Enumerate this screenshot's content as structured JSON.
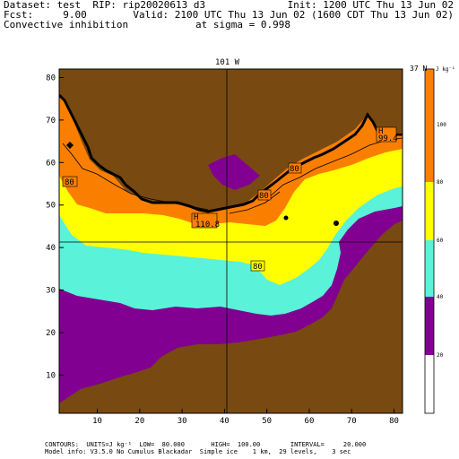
{
  "header": {
    "line1_left": "Dataset: test  RIP: rip20020613 d3",
    "line1_right": "Init: 1200 UTC Thu 13 Jun 02",
    "line2_left": "Fcst:     9.00",
    "line2_right": "Valid: 2100 UTC Thu 13 Jun 02 (1600 CDT Thu 13 Jun 02)",
    "line3_left": "Convective inhibition",
    "line3_right": "at sigma = 0.998"
  },
  "map": {
    "lon_label": "101 W",
    "lat_label": "37 N",
    "units_label": "J kg⁻¹",
    "x_ticks": [
      "10",
      "20",
      "30",
      "40",
      "50",
      "60",
      "70",
      "80"
    ],
    "y_ticks": [
      "10",
      "20",
      "30",
      "40",
      "50",
      "60",
      "70",
      "80"
    ],
    "contour_labels": [
      {
        "text": "80",
        "level": 80
      },
      {
        "text": "80",
        "level": 80
      },
      {
        "text": "80",
        "level": 80
      },
      {
        "text": "80",
        "level": 80
      },
      {
        "text": "H",
        "level": null
      },
      {
        "text": "110.8",
        "level": null
      },
      {
        "text": "H",
        "level": null
      },
      {
        "text": "99.4",
        "level": null
      }
    ],
    "colors": {
      "above_100": "#f58a0e",
      "80_100": "#fa7f00",
      "60_80": "#ffff00",
      "40_60": "#5af2d8",
      "20_40": "#820091",
      "below_20": "#ffffff",
      "masked_terrain": "#784a12"
    }
  },
  "colorbar": {
    "levels": [
      "100",
      "80",
      "60",
      "40",
      "20"
    ],
    "colors": [
      "#fa7f00",
      "#fa7f00",
      "#ffff00",
      "#5af2d8",
      "#820091",
      "#ffffff"
    ]
  },
  "footer": {
    "line1": "CONTOURS:  UNITS=J kg⁻¹  LOW=  80.000       HIGH=  100.00        INTERVAL=     20.000",
    "line2": "Model info: V3.5.0 No Cumulus Blackadar  Simple ice    1 km,  29 levels,    3 sec"
  }
}
